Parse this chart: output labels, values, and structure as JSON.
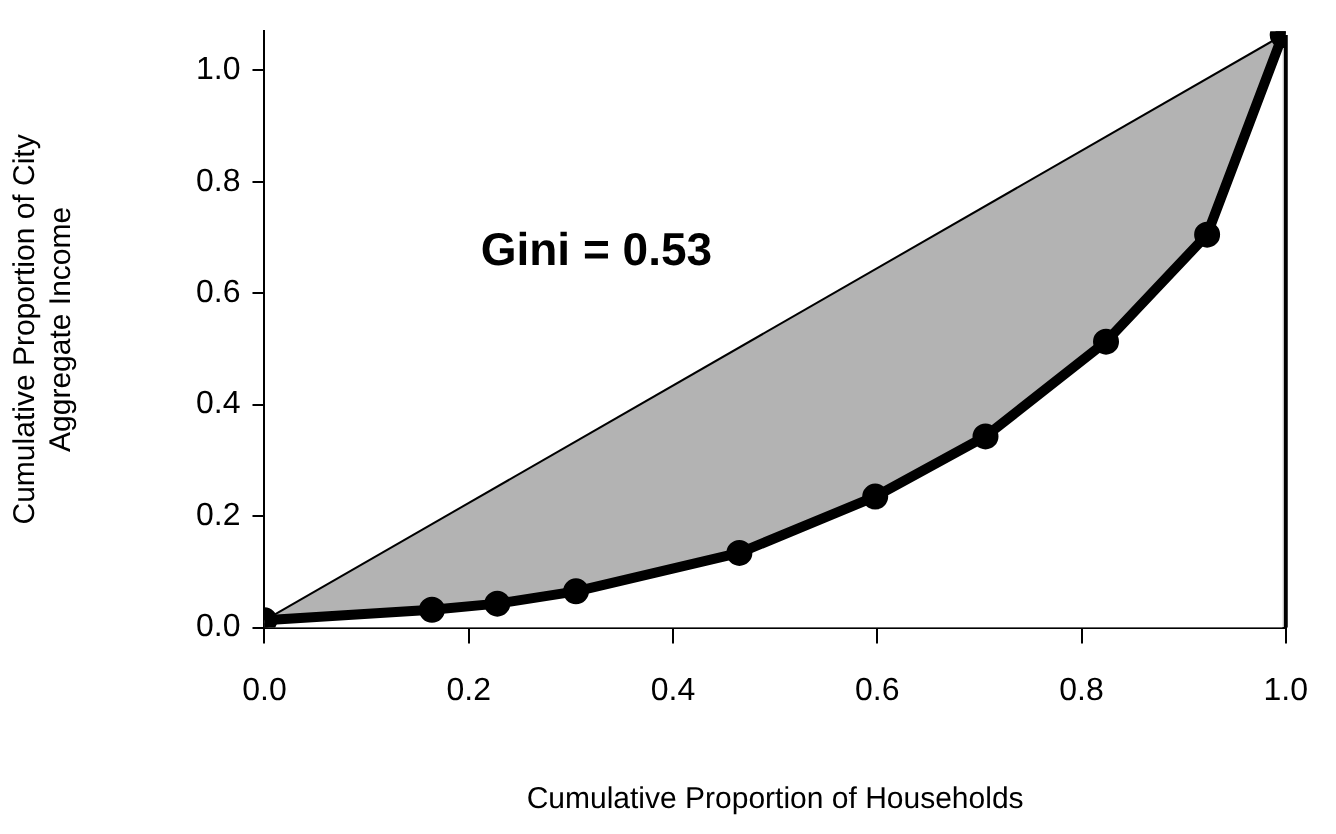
{
  "chart_data": {
    "type": "line",
    "xlabel": "Cumulative Proportion of Households",
    "ylabel": "Cumulative Proportion of City\nAggregate Income",
    "annotations": [
      "Gini = 0.53"
    ],
    "series": [
      {
        "type": "area",
        "color": "#b3b3b3",
        "marker": "none",
        "x": [
          0,
          0.997
        ],
        "values": [
          0.013,
          1.063
        ]
      },
      {
        "color": "#000000",
        "x": [
          0,
          0.164,
          0.228,
          0.305,
          0.465,
          0.598,
          0.706,
          0.824,
          0.923,
          0.997
        ],
        "values": [
          0.013,
          0.032,
          0.043,
          0.065,
          0.134,
          0.235,
          0.343,
          0.513,
          0.705,
          1.063
        ]
      }
    ],
    "ref_lines": [
      {
        "axis": "x",
        "value": 1.0,
        "label": null,
        "color": "#000000"
      }
    ],
    "xlim": [
      0,
      1
    ],
    "xticks": [
      {
        "value": 0,
        "label": "0.0"
      },
      0.2,
      0.4,
      0.6,
      0.8,
      {
        "value": 1,
        "label": "1.0"
      }
    ],
    "ylim": [
      0,
      1.07
    ],
    "yticks": [
      {
        "value": 0,
        "label": "0.0"
      },
      0.2,
      0.4,
      0.6,
      0.8,
      {
        "value": 1,
        "label": "1.0"
      }
    ],
    "grid": false,
    "legend": false,
    "marker": "circle"
  }
}
